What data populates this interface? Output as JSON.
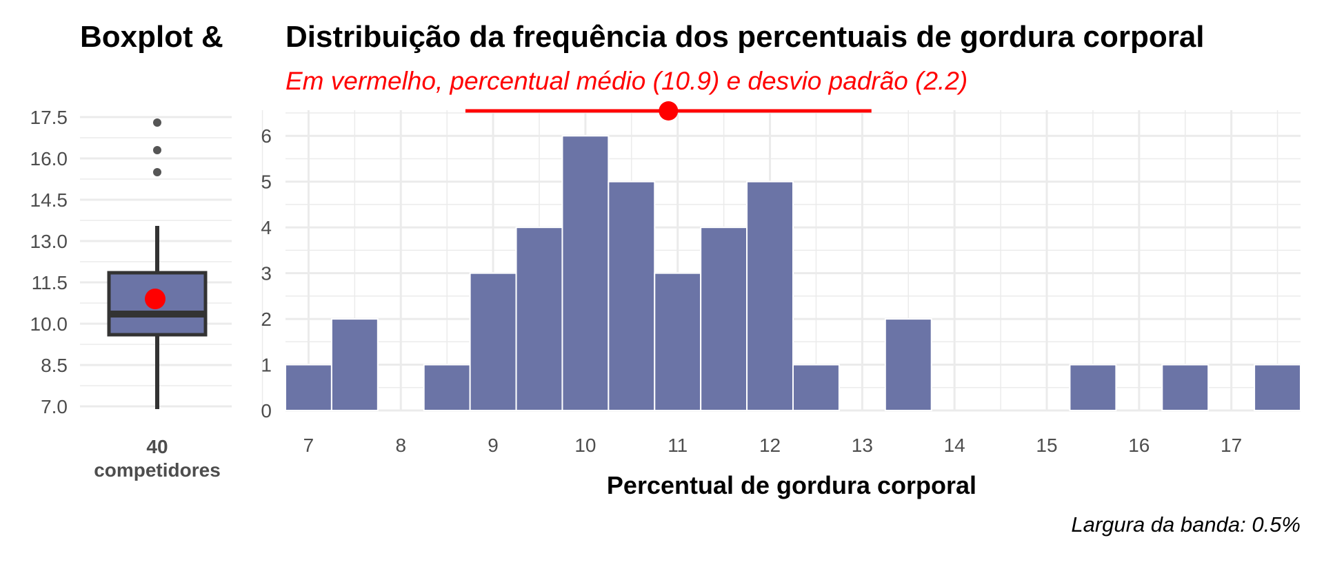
{
  "colors": {
    "bar_fill": "#6B74A6",
    "bar_stroke": "#ffffff",
    "box_stroke": "#333333",
    "box_fill": "#6B74A6",
    "mean": "#FF0000",
    "grid": "#ebebeb",
    "outlier": "#555555"
  },
  "chart_data": [
    {
      "type": "box",
      "title": "Boxplot &",
      "count_label": "40",
      "count_unit": "competidores",
      "y_ticks": [
        7.0,
        8.5,
        10.0,
        11.5,
        13.0,
        14.5,
        16.0,
        17.5
      ],
      "y_tick_labels": [
        "7.0",
        "8.5",
        "10.0",
        "11.5",
        "13.0",
        "14.5",
        "16.0",
        "17.5"
      ],
      "ylim": [
        6.75,
        17.75
      ],
      "whisker_low": 6.9,
      "q1": 9.6,
      "median": 10.35,
      "q3": 11.85,
      "whisker_high": 13.55,
      "mean": 10.9,
      "outliers": [
        15.5,
        16.3,
        17.3
      ],
      "grid": true
    },
    {
      "type": "bar",
      "subtype": "histogram",
      "title": "Distribuição da frequência dos percentuais de gordura corporal",
      "subtitle": "Em vermelho, percentual médio (10.9) e desvio padrão (2.2)",
      "xlabel": "Percentual de gordura corporal",
      "ylabel": "",
      "caption": "Largura da banda: 0.5%",
      "bin_width": 0.5,
      "bin_starts": [
        6.75,
        7.25,
        7.75,
        8.25,
        8.75,
        9.25,
        9.75,
        10.25,
        10.75,
        11.25,
        11.75,
        12.25,
        12.75,
        13.25,
        13.75,
        14.25,
        14.75,
        15.25,
        15.75,
        16.25,
        16.75,
        17.25
      ],
      "counts": [
        1,
        2,
        0,
        1,
        3,
        4,
        6,
        5,
        3,
        4,
        5,
        1,
        0,
        2,
        0,
        0,
        0,
        1,
        0,
        1,
        0,
        1
      ],
      "x_ticks": [
        7,
        8,
        9,
        10,
        11,
        12,
        13,
        14,
        15,
        16,
        17
      ],
      "y_ticks": [
        0,
        1,
        2,
        3,
        4,
        5,
        6
      ],
      "xlim": [
        6.75,
        17.75
      ],
      "ylim": [
        0,
        6.5
      ],
      "mean": 10.9,
      "sd": 2.2,
      "mean_y": 6.5,
      "grid": true
    }
  ]
}
